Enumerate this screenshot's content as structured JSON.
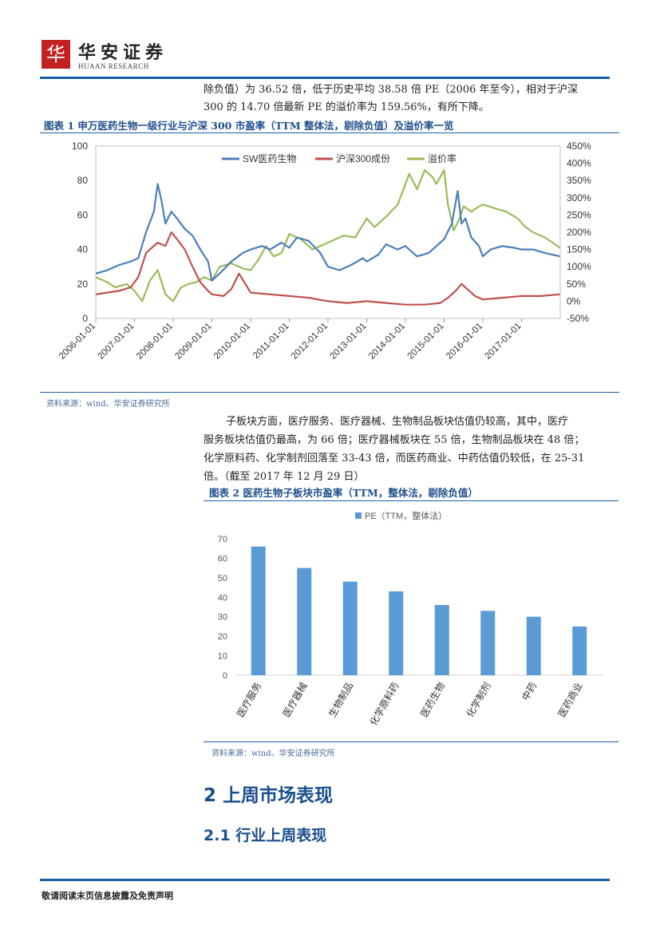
{
  "header": {
    "logo_glyph": "华",
    "brand_cn": "华安证券",
    "brand_en": "HUAAN RESEARCH"
  },
  "intro": {
    "line1": "除负值）为 36.52 倍，低于历史平均 38.58 倍 PE（2006 年至今），相对于沪深",
    "line2": "300 的 14.70 倍最新 PE 的溢价率为 159.56%，有所下降。"
  },
  "figure1": {
    "caption": "图表 1 申万医药生物一级行业与沪深 300 市盈率（TTM 整体法，剔除负值）及溢价率一览",
    "source": "资料来源：wind、华安证券研究所"
  },
  "paragraph2": {
    "line1": "子板块方面，医疗服务、医疗器械、生物制品板块估值仍较高，其中，医疗",
    "line2": "服务板块估值仍最高，为 66 倍；医疗器械板块在 55 倍，生物制品板块在 48 倍；",
    "line3": "化学原料药、化学制剂回落至 33-43 倍，而医药商业、中药估值仍较低，在 25-31",
    "line4": "倍。（截至 2017 年 12 月 29 日）"
  },
  "figure2": {
    "caption": "图表 2 医药生物子板块市盈率（TTM，整体法，剔除负值）",
    "source": "资料来源：wind、华安证券研究所"
  },
  "section": {
    "h1": "2 上周市场表现",
    "h2": "2.1 行业上周表现"
  },
  "footer": {
    "text": "敬请阅读末页信息披露及免责声明"
  },
  "colors": {
    "accent": "#1a5fa8",
    "series_sw": "#4a7ebb",
    "series_hs300": "#c0504d",
    "series_premium": "#9bbb59",
    "bar": "#5b9bd5",
    "logo_red": "#c4201f"
  },
  "chart_data": [
    {
      "type": "line",
      "title": "",
      "legend": [
        "SW医药生物",
        "沪深300成份",
        "溢价率"
      ],
      "legend_position": "top",
      "x_tick_labels": [
        "2006-01-01",
        "2007-01-01",
        "2008-01-01",
        "2009-01-01",
        "2010-01-01",
        "2011-01-01",
        "2012-01-01",
        "2013-01-01",
        "2014-01-01",
        "2015-01-01",
        "2016-01-01",
        "2017-01-01"
      ],
      "x_range": [
        2006.0,
        2018.0
      ],
      "y_left_ticks": [
        "100",
        "80",
        "60",
        "40",
        "20",
        "0"
      ],
      "y_left_range": [
        0,
        100
      ],
      "y_right_ticks": [
        "450%",
        "400%",
        "350%",
        "300%",
        "250%",
        "200%",
        "150%",
        "100%",
        "50%",
        "0%",
        "-50%"
      ],
      "y_right_range": [
        -50,
        450
      ],
      "series": [
        {
          "name": "SW医药生物",
          "axis": "left",
          "x": [
            2006.0,
            2006.3,
            2006.6,
            2006.9,
            2007.1,
            2007.3,
            2007.5,
            2007.6,
            2007.7,
            2007.8,
            2007.95,
            2008.1,
            2008.3,
            2008.5,
            2008.7,
            2008.9,
            2009.0,
            2009.2,
            2009.5,
            2009.8,
            2010.0,
            2010.3,
            2010.5,
            2010.8,
            2011.0,
            2011.2,
            2011.5,
            2011.8,
            2012.0,
            2012.3,
            2012.6,
            2012.9,
            2013.0,
            2013.3,
            2013.5,
            2013.8,
            2014.0,
            2014.3,
            2014.6,
            2014.9,
            2015.0,
            2015.2,
            2015.35,
            2015.45,
            2015.55,
            2015.7,
            2015.9,
            2016.0,
            2016.2,
            2016.5,
            2016.8,
            2017.0,
            2017.3,
            2017.6,
            2017.99
          ],
          "y": [
            26,
            28,
            31,
            33,
            35,
            50,
            62,
            78,
            68,
            55,
            62,
            58,
            52,
            48,
            40,
            33,
            22,
            26,
            33,
            38,
            40,
            42,
            40,
            44,
            41,
            47,
            45,
            38,
            30,
            28,
            31,
            35,
            33,
            37,
            43,
            40,
            42,
            36,
            38,
            44,
            46,
            55,
            74,
            55,
            58,
            47,
            42,
            36,
            40,
            42,
            41,
            40,
            40,
            38,
            36
          ]
        },
        {
          "name": "沪深300成份",
          "axis": "left",
          "x": [
            2006.0,
            2006.3,
            2006.6,
            2006.9,
            2007.1,
            2007.3,
            2007.6,
            2007.8,
            2007.95,
            2008.1,
            2008.3,
            2008.5,
            2008.7,
            2008.9,
            2009.0,
            2009.3,
            2009.5,
            2009.7,
            2010.0,
            2010.5,
            2011.0,
            2011.5,
            2012.0,
            2012.5,
            2013.0,
            2013.5,
            2014.0,
            2014.5,
            2014.9,
            2015.1,
            2015.3,
            2015.45,
            2015.6,
            2015.8,
            2016.0,
            2016.5,
            2017.0,
            2017.5,
            2017.99
          ],
          "y": [
            14,
            15,
            16,
            18,
            24,
            38,
            44,
            42,
            50,
            46,
            40,
            30,
            21,
            16,
            14,
            13,
            17,
            26,
            15,
            14,
            13,
            12,
            10,
            9,
            10,
            9,
            8,
            8,
            9,
            12,
            16,
            20,
            17,
            13,
            11,
            12,
            13,
            13,
            14
          ]
        },
        {
          "name": "溢价率",
          "axis": "right",
          "x": [
            2006.0,
            2006.3,
            2006.5,
            2006.8,
            2007.0,
            2007.2,
            2007.4,
            2007.6,
            2007.8,
            2008.0,
            2008.2,
            2008.4,
            2008.6,
            2008.8,
            2009.0,
            2009.2,
            2009.5,
            2009.8,
            2010.0,
            2010.2,
            2010.4,
            2010.6,
            2010.8,
            2011.0,
            2011.3,
            2011.6,
            2011.9,
            2012.1,
            2012.4,
            2012.7,
            2013.0,
            2013.2,
            2013.5,
            2013.8,
            2014.0,
            2014.1,
            2014.3,
            2014.5,
            2014.7,
            2014.8,
            2015.0,
            2015.1,
            2015.25,
            2015.4,
            2015.5,
            2015.7,
            2015.9,
            2016.0,
            2016.3,
            2016.6,
            2016.9,
            2017.1,
            2017.3,
            2017.6,
            2017.8,
            2017.99
          ],
          "y": [
            70,
            55,
            40,
            50,
            30,
            0,
            60,
            90,
            20,
            0,
            40,
            50,
            55,
            70,
            60,
            100,
            110,
            95,
            90,
            120,
            160,
            130,
            140,
            195,
            180,
            150,
            165,
            175,
            190,
            185,
            240,
            215,
            245,
            280,
            340,
            370,
            325,
            380,
            360,
            340,
            380,
            280,
            205,
            240,
            275,
            260,
            275,
            280,
            270,
            260,
            240,
            215,
            200,
            185,
            170,
            155
          ]
        }
      ]
    },
    {
      "type": "bar",
      "title": "",
      "legend": [
        "PE（TTM，整体法）"
      ],
      "categories": [
        "医疗服务",
        "医疗器械",
        "生物制品",
        "化学原料药",
        "医药生物",
        "化学制剂",
        "中药",
        "医药商业"
      ],
      "values": [
        66,
        55,
        48,
        43,
        36,
        33,
        30,
        25
      ],
      "y_ticks": [
        "70",
        "60",
        "50",
        "40",
        "30",
        "20",
        "10",
        "0"
      ],
      "ylim": [
        0,
        70
      ]
    }
  ]
}
